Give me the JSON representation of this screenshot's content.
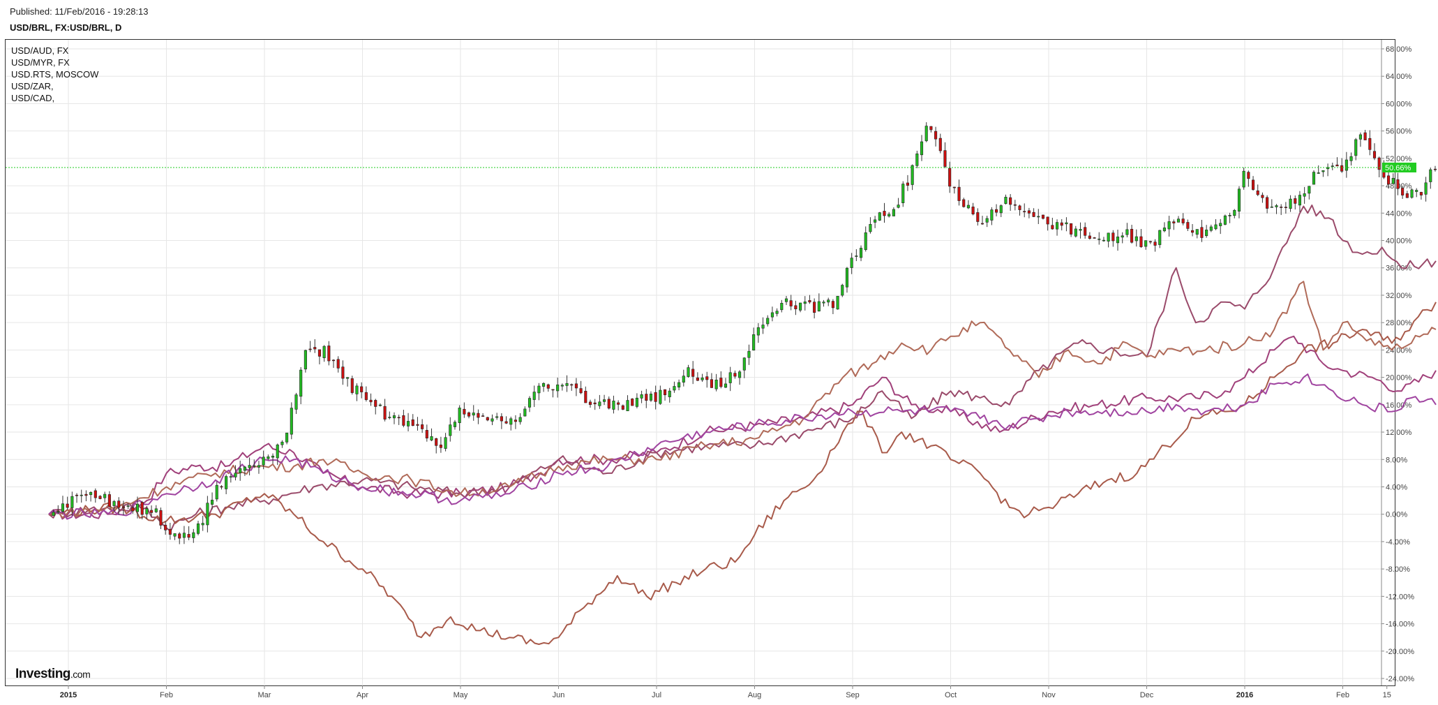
{
  "header": {
    "published": "Published: 11/Feb/2016 - 19:28:13",
    "symbol": "USD/BRL, FX:USD/BRL, D"
  },
  "legend": {
    "items": [
      "USD/AUD, FX",
      "USD/MYR, FX",
      "USD.RTS, MOSCOW",
      "USD/ZAR,",
      "USD/CAD,"
    ]
  },
  "brand": {
    "name": "Investing",
    "suffix": ".com"
  },
  "chart_data": {
    "type": "line",
    "title": "USD/BRL, FX:USD/BRL, D",
    "ylim": [
      -24,
      68
    ],
    "y_ticks": [
      "68.00%",
      "64.00%",
      "60.00%",
      "56.00%",
      "52.00%",
      "48.00%",
      "44.00%",
      "40.00%",
      "36.00%",
      "32.00%",
      "28.00%",
      "24.00%",
      "20.00%",
      "16.00%",
      "12.00%",
      "8.00%",
      "4.00%",
      "0.00%",
      "-4.00%",
      "-8.00%",
      "-12.00%",
      "-16.00%",
      "-20.00%",
      "-24.00%"
    ],
    "x_ticks": [
      {
        "label": "2015",
        "month_index": 0,
        "year": true
      },
      {
        "label": "Feb",
        "month_index": 1
      },
      {
        "label": "Mar",
        "month_index": 2
      },
      {
        "label": "Apr",
        "month_index": 3
      },
      {
        "label": "May",
        "month_index": 4
      },
      {
        "label": "Jun",
        "month_index": 5
      },
      {
        "label": "Jul",
        "month_index": 6
      },
      {
        "label": "Aug",
        "month_index": 7
      },
      {
        "label": "Sep",
        "month_index": 8
      },
      {
        "label": "Oct",
        "month_index": 9
      },
      {
        "label": "Nov",
        "month_index": 10
      },
      {
        "label": "Dec",
        "month_index": 11
      },
      {
        "label": "2016",
        "month_index": 12,
        "year": true
      },
      {
        "label": "Feb",
        "month_index": 13
      },
      {
        "label": "15",
        "month_index": 13.45
      }
    ],
    "grid": true,
    "last_value": {
      "label": "50.66%",
      "value": 50.66,
      "color": "#22cc22"
    },
    "main_series": {
      "name": "USD/BRL",
      "type": "candlestick",
      "up_color": "#22bb22",
      "down_color": "#cc1111",
      "close_path": [
        [
          -0.2,
          0
        ],
        [
          0.2,
          3
        ],
        [
          0.6,
          1
        ],
        [
          0.9,
          0
        ],
        [
          1.0,
          -3
        ],
        [
          1.3,
          -3
        ],
        [
          1.5,
          4
        ],
        [
          1.8,
          7
        ],
        [
          2.0,
          8
        ],
        [
          2.2,
          10
        ],
        [
          2.4,
          23
        ],
        [
          2.6,
          24
        ],
        [
          2.8,
          20
        ],
        [
          3.0,
          17
        ],
        [
          3.3,
          14
        ],
        [
          3.6,
          12
        ],
        [
          3.8,
          10
        ],
        [
          4.0,
          15
        ],
        [
          4.3,
          14
        ],
        [
          4.5,
          13
        ],
        [
          4.8,
          18
        ],
        [
          5.0,
          19
        ],
        [
          5.3,
          17
        ],
        [
          5.6,
          16
        ],
        [
          6.0,
          17
        ],
        [
          6.3,
          21
        ],
        [
          6.5,
          19
        ],
        [
          6.8,
          20
        ],
        [
          7.0,
          26
        ],
        [
          7.3,
          31
        ],
        [
          7.6,
          30
        ],
        [
          7.8,
          31
        ],
        [
          8.0,
          37
        ],
        [
          8.2,
          43
        ],
        [
          8.4,
          44
        ],
        [
          8.6,
          50
        ],
        [
          8.75,
          57
        ],
        [
          8.9,
          53
        ],
        [
          9.0,
          48
        ],
        [
          9.3,
          42
        ],
        [
          9.6,
          46
        ],
        [
          9.9,
          43
        ],
        [
          10.2,
          42
        ],
        [
          10.5,
          40
        ],
        [
          10.8,
          41
        ],
        [
          11.0,
          39
        ],
        [
          11.3,
          43
        ],
        [
          11.6,
          41
        ],
        [
          11.9,
          45
        ],
        [
          12.0,
          50
        ],
        [
          12.3,
          44
        ],
        [
          12.6,
          47
        ],
        [
          12.8,
          51
        ],
        [
          13.0,
          50
        ],
        [
          13.2,
          56
        ],
        [
          13.4,
          50
        ],
        [
          13.6,
          47
        ],
        [
          13.8,
          47
        ],
        [
          13.95,
          51
        ]
      ],
      "volatility": 1.2
    },
    "series": [
      {
        "name": "USD/AUD, FX",
        "color": "#a0407a",
        "points": [
          [
            -0.2,
            0
          ],
          [
            0.4,
            0
          ],
          [
            0.8,
            2
          ],
          [
            1.0,
            6
          ],
          [
            1.3,
            7
          ],
          [
            1.6,
            7
          ],
          [
            2.0,
            10
          ],
          [
            2.3,
            9
          ],
          [
            2.6,
            6
          ],
          [
            3.0,
            4
          ],
          [
            3.5,
            3
          ],
          [
            4.0,
            3
          ],
          [
            4.5,
            4
          ],
          [
            4.8,
            6
          ],
          [
            5.0,
            8
          ],
          [
            5.5,
            8
          ],
          [
            6.0,
            9
          ],
          [
            6.5,
            12
          ],
          [
            7.0,
            13
          ],
          [
            7.5,
            14
          ],
          [
            8.0,
            16
          ],
          [
            8.3,
            20
          ],
          [
            8.6,
            16
          ],
          [
            9.0,
            15
          ],
          [
            9.5,
            12
          ],
          [
            10.0,
            15
          ],
          [
            10.5,
            16
          ],
          [
            11.0,
            17
          ],
          [
            11.5,
            17
          ],
          [
            11.8,
            18
          ],
          [
            12.0,
            20
          ],
          [
            12.3,
            24
          ],
          [
            12.5,
            26
          ],
          [
            12.8,
            22
          ],
          [
            13.0,
            21
          ],
          [
            13.3,
            20
          ],
          [
            13.6,
            18
          ],
          [
            13.95,
            21
          ]
        ]
      },
      {
        "name": "USD/MYR, FX",
        "color": "#9a4a6a",
        "points": [
          [
            -0.2,
            0
          ],
          [
            0.4,
            1
          ],
          [
            0.8,
            1
          ],
          [
            1.0,
            -2
          ],
          [
            1.3,
            0
          ],
          [
            1.6,
            1
          ],
          [
            2.0,
            2
          ],
          [
            2.5,
            4
          ],
          [
            3.0,
            5
          ],
          [
            3.5,
            4
          ],
          [
            4.0,
            3
          ],
          [
            4.5,
            4
          ],
          [
            5.0,
            8
          ],
          [
            5.5,
            6
          ],
          [
            6.0,
            9
          ],
          [
            6.5,
            10
          ],
          [
            7.0,
            10
          ],
          [
            7.5,
            12
          ],
          [
            8.0,
            14
          ],
          [
            8.3,
            18
          ],
          [
            8.6,
            14
          ],
          [
            9.0,
            18
          ],
          [
            9.3,
            17
          ],
          [
            9.6,
            16
          ],
          [
            9.9,
            21
          ],
          [
            10.3,
            25
          ],
          [
            10.6,
            24
          ],
          [
            11.0,
            23
          ],
          [
            11.3,
            36
          ],
          [
            11.5,
            28
          ],
          [
            11.8,
            31
          ],
          [
            12.0,
            30
          ],
          [
            12.3,
            36
          ],
          [
            12.6,
            45
          ],
          [
            12.9,
            43
          ],
          [
            13.0,
            40
          ],
          [
            13.2,
            38
          ],
          [
            13.4,
            39
          ],
          [
            13.6,
            36
          ],
          [
            13.95,
            37
          ]
        ]
      },
      {
        "name": "USD.RTS, MOSCOW",
        "color": "#a85a4a",
        "points": [
          [
            -0.2,
            0
          ],
          [
            0.5,
            1
          ],
          [
            1.0,
            -1
          ],
          [
            1.5,
            0
          ],
          [
            2.0,
            3
          ],
          [
            2.3,
            0
          ],
          [
            2.6,
            -4
          ],
          [
            3.0,
            -8
          ],
          [
            3.3,
            -12
          ],
          [
            3.6,
            -18
          ],
          [
            3.9,
            -15
          ],
          [
            4.2,
            -17
          ],
          [
            4.5,
            -18
          ],
          [
            4.8,
            -19
          ],
          [
            5.0,
            -18
          ],
          [
            5.3,
            -13
          ],
          [
            5.6,
            -9
          ],
          [
            5.9,
            -12
          ],
          [
            6.2,
            -10
          ],
          [
            6.5,
            -8
          ],
          [
            6.8,
            -7
          ],
          [
            7.0,
            -3
          ],
          [
            7.3,
            2
          ],
          [
            7.6,
            5
          ],
          [
            7.9,
            12
          ],
          [
            8.1,
            15
          ],
          [
            8.3,
            9
          ],
          [
            8.5,
            12
          ],
          [
            8.8,
            10
          ],
          [
            9.0,
            8
          ],
          [
            9.3,
            6
          ],
          [
            9.6,
            1
          ],
          [
            9.8,
            0
          ],
          [
            10.0,
            1
          ],
          [
            10.3,
            3
          ],
          [
            10.6,
            5
          ],
          [
            10.9,
            6
          ],
          [
            11.2,
            10
          ],
          [
            11.5,
            14
          ],
          [
            11.8,
            15
          ],
          [
            12.0,
            16
          ],
          [
            12.3,
            20
          ],
          [
            12.6,
            24
          ],
          [
            12.9,
            25
          ],
          [
            13.2,
            27
          ],
          [
            13.5,
            25
          ],
          [
            13.95,
            31
          ]
        ]
      },
      {
        "name": "USD/ZAR,",
        "color": "#b06a58",
        "points": [
          [
            -0.2,
            0
          ],
          [
            0.5,
            1
          ],
          [
            1.0,
            4
          ],
          [
            1.5,
            6
          ],
          [
            2.0,
            7
          ],
          [
            2.3,
            7
          ],
          [
            2.6,
            8
          ],
          [
            3.0,
            6
          ],
          [
            3.5,
            5
          ],
          [
            4.0,
            3
          ],
          [
            4.5,
            4
          ],
          [
            5.0,
            7
          ],
          [
            5.5,
            8
          ],
          [
            6.0,
            8
          ],
          [
            6.5,
            10
          ],
          [
            7.0,
            11
          ],
          [
            7.5,
            14
          ],
          [
            7.9,
            20
          ],
          [
            8.2,
            22
          ],
          [
            8.5,
            25
          ],
          [
            8.8,
            24
          ],
          [
            9.0,
            26
          ],
          [
            9.3,
            28
          ],
          [
            9.6,
            24
          ],
          [
            9.9,
            20
          ],
          [
            10.2,
            24
          ],
          [
            10.5,
            22
          ],
          [
            10.8,
            25
          ],
          [
            11.0,
            23
          ],
          [
            11.3,
            24
          ],
          [
            11.6,
            24
          ],
          [
            12.0,
            25
          ],
          [
            12.3,
            27
          ],
          [
            12.6,
            34
          ],
          [
            12.8,
            24
          ],
          [
            13.0,
            28
          ],
          [
            13.2,
            26
          ],
          [
            13.5,
            24
          ],
          [
            13.7,
            25
          ],
          [
            13.95,
            27
          ]
        ]
      },
      {
        "name": "USD/CAD,",
        "color": "#a044a0",
        "points": [
          [
            -0.2,
            0
          ],
          [
            0.5,
            0
          ],
          [
            1.0,
            3
          ],
          [
            1.5,
            5
          ],
          [
            2.0,
            8
          ],
          [
            2.3,
            8
          ],
          [
            2.6,
            6
          ],
          [
            3.0,
            4
          ],
          [
            3.5,
            3
          ],
          [
            4.0,
            2
          ],
          [
            4.5,
            3
          ],
          [
            5.0,
            6
          ],
          [
            5.5,
            7
          ],
          [
            6.0,
            10
          ],
          [
            6.5,
            12
          ],
          [
            7.0,
            13
          ],
          [
            7.5,
            14
          ],
          [
            8.0,
            15
          ],
          [
            8.5,
            15
          ],
          [
            9.0,
            15
          ],
          [
            9.3,
            14
          ],
          [
            9.6,
            13
          ],
          [
            9.9,
            14
          ],
          [
            10.2,
            15
          ],
          [
            10.5,
            15
          ],
          [
            10.8,
            15
          ],
          [
            11.0,
            15
          ],
          [
            11.3,
            16
          ],
          [
            11.6,
            15
          ],
          [
            12.0,
            16
          ],
          [
            12.3,
            19
          ],
          [
            12.6,
            20
          ],
          [
            12.9,
            18
          ],
          [
            13.2,
            16
          ],
          [
            13.5,
            15
          ],
          [
            13.7,
            17
          ],
          [
            13.95,
            16
          ]
        ]
      }
    ]
  }
}
